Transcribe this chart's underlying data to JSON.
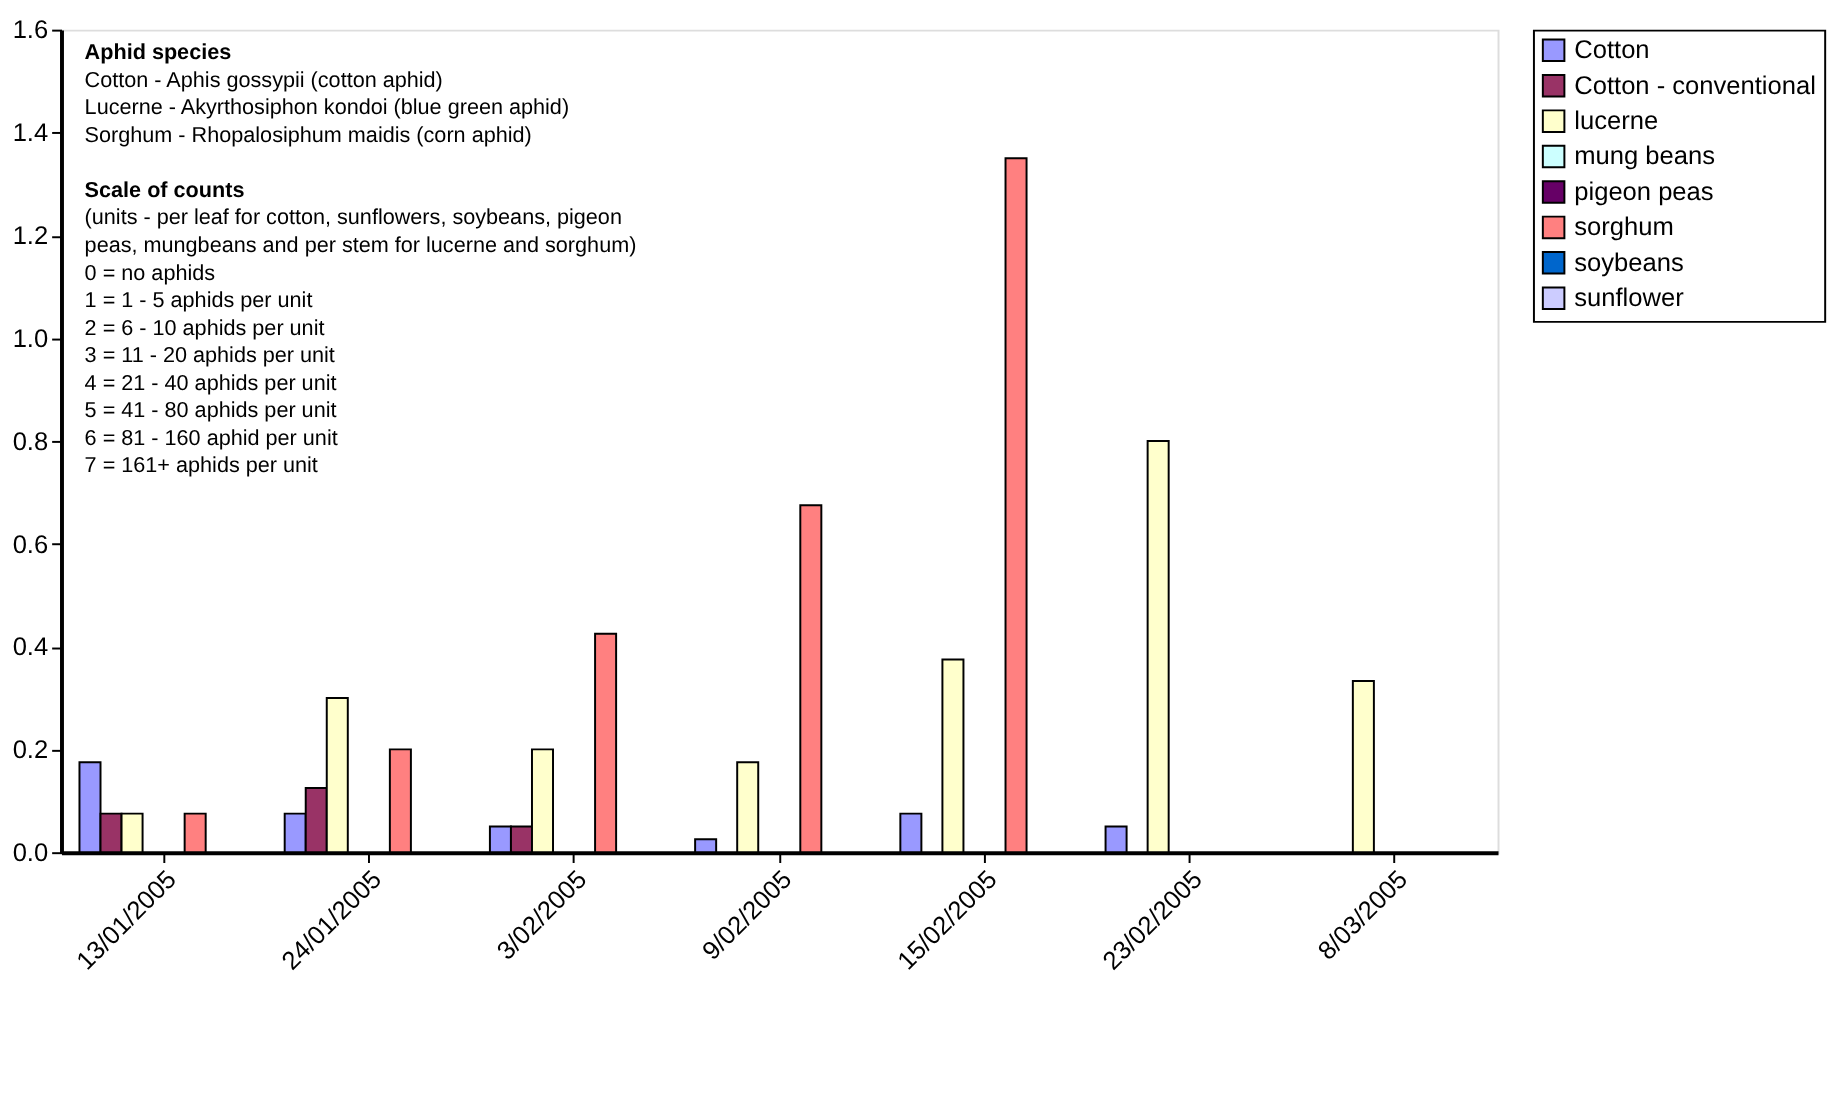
{
  "chart_data": {
    "type": "bar",
    "categories": [
      "13/01/2005",
      "24/01/2005",
      "3/02/2005",
      "9/02/2005",
      "15/02/2005",
      "23/02/2005",
      "8/03/2005"
    ],
    "series": [
      {
        "name": "Cotton",
        "color": "#9999ff",
        "values": [
          0.175,
          0.075,
          0.05,
          0.025,
          0.075,
          0.05,
          0
        ]
      },
      {
        "name": "Cotton - conventional",
        "color": "#993366",
        "values": [
          0.075,
          0.125,
          0.05,
          0,
          0,
          0,
          0
        ]
      },
      {
        "name": "lucerne",
        "color": "#ffffcc",
        "values": [
          0.075,
          0.3,
          0.2,
          0.175,
          0.375,
          0.8,
          0.333
        ]
      },
      {
        "name": "mung beans",
        "color": "#ccffff",
        "values": [
          0,
          0,
          0,
          0,
          0,
          0,
          0
        ]
      },
      {
        "name": "pigeon peas",
        "color": "#660066",
        "values": [
          0,
          0,
          0,
          0,
          0,
          0,
          0
        ]
      },
      {
        "name": "sorghum",
        "color": "#ff8080",
        "values": [
          0.075,
          0.2,
          0.425,
          0.675,
          1.35,
          0,
          0
        ]
      },
      {
        "name": "soybeans",
        "color": "#0066cc",
        "values": [
          0,
          0,
          0,
          0,
          0,
          0,
          0
        ]
      },
      {
        "name": "sunflower",
        "color": "#ccccff",
        "values": [
          0,
          0,
          0,
          0,
          0,
          0,
          0
        ]
      }
    ],
    "ylim": [
      0,
      1.6
    ],
    "yticks": [
      {
        "value": 0,
        "label": "0.0"
      },
      0.2,
      0.4,
      0.6,
      0.8,
      {
        "value": 1,
        "label": "1.0"
      },
      1.2,
      1.4,
      1.6
    ],
    "grid": false,
    "legend": "right",
    "annotations": [
      "Aphid species\nCotton - Aphis gossypii (cotton aphid)\nLucerne - Akyrthosiphon kondoi (blue green aphid)\nSorghum - Rhopalosiphum maidis (corn aphid)",
      "Scale of counts\n(units - per leaf for cotton, sunflowers, soybeans, pigeon\npeas, mungbeans and per stem for lucerne and sorghum)\n0 = no aphids\n1 = 1 - 5 aphids per unit\n2 = 6 - 10 aphids per unit\n3 = 11 - 20 aphids per unit\n4 = 21 - 40 aphids per unit\n5 = 41 - 80 aphids per unit\n6 = 81 - 160 aphid per unit\n7 = 161+ aphids per unit"
    ]
  }
}
